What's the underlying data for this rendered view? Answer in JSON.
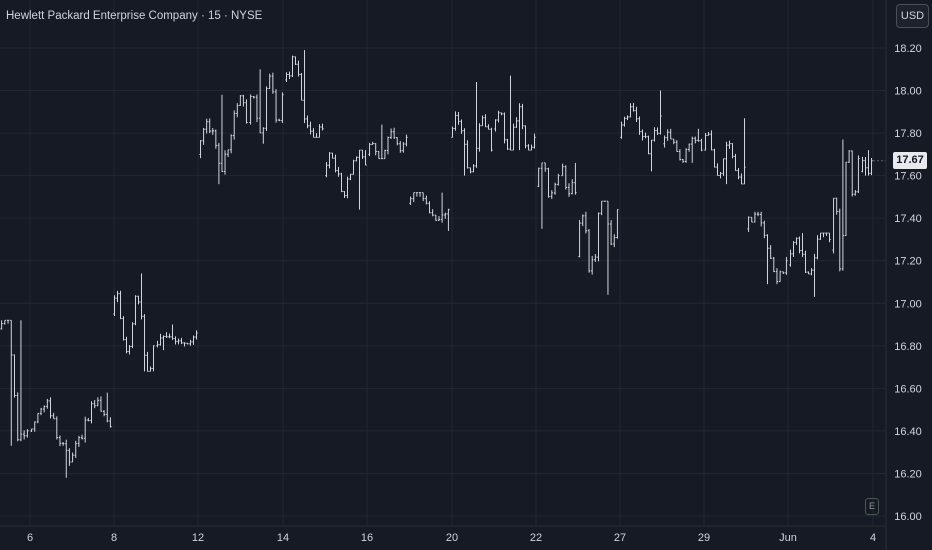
{
  "header": {
    "legend_title": "Hewlett Packard Enterprise Company · 15 · NYSE",
    "currency": "USD"
  },
  "badges": {
    "earnings": "E",
    "last_price": "17.67"
  },
  "colors": {
    "background": "#161a25",
    "bar": "#d1d4dc",
    "grid": "#232733",
    "text": "#d1d4dc",
    "price_label_bg": "#e8e9ee"
  },
  "chart_data": {
    "type": "ohlc",
    "timeframe": "15",
    "exchange": "NYSE",
    "ylim": [
      16.0,
      18.3
    ],
    "y_ticks": [
      "16.00",
      "16.20",
      "16.40",
      "16.60",
      "16.80",
      "17.00",
      "17.20",
      "17.40",
      "17.60",
      "17.80",
      "18.00",
      "18.20"
    ],
    "x_ticks": [
      "6",
      "8",
      "12",
      "14",
      "16",
      "20",
      "22",
      "27",
      "29",
      "Jun",
      "4"
    ],
    "last_price": 17.67,
    "sessions": [
      {
        "label": "6",
        "open": 16.88,
        "close": 16.4,
        "low": 16.33,
        "high": 16.92
      },
      {
        "label": "7",
        "open": 16.4,
        "close": 16.42,
        "low": 16.18,
        "high": 16.58
      },
      {
        "label": "8",
        "open": 16.95,
        "close": 16.8,
        "low": 16.68,
        "high": 17.14
      },
      {
        "label": "9",
        "open": 16.8,
        "close": 16.86,
        "low": 16.78,
        "high": 16.9
      },
      {
        "label": "12",
        "open": 17.7,
        "close": 17.85,
        "low": 17.56,
        "high": 17.98
      },
      {
        "label": "13",
        "open": 17.85,
        "close": 17.98,
        "low": 17.75,
        "high": 18.1
      },
      {
        "label": "14",
        "open": 18.05,
        "close": 17.82,
        "low": 17.78,
        "high": 18.19
      },
      {
        "label": "15",
        "open": 17.6,
        "close": 17.65,
        "low": 17.44,
        "high": 17.72
      },
      {
        "label": "16",
        "open": 17.7,
        "close": 17.78,
        "low": 17.68,
        "high": 17.84
      },
      {
        "label": "17",
        "open": 17.47,
        "close": 17.44,
        "low": 17.34,
        "high": 17.52
      },
      {
        "label": "20",
        "open": 17.78,
        "close": 17.72,
        "low": 17.6,
        "high": 18.04
      },
      {
        "label": "21",
        "open": 17.82,
        "close": 17.78,
        "low": 17.72,
        "high": 18.07
      },
      {
        "label": "22",
        "open": 17.55,
        "close": 17.6,
        "low": 17.35,
        "high": 17.66
      },
      {
        "label": "23",
        "open": 17.6,
        "close": 17.52,
        "low": 17.5,
        "high": 17.66
      },
      {
        "label": "24",
        "open": 17.22,
        "close": 17.44,
        "low": 17.04,
        "high": 17.48
      },
      {
        "label": "27",
        "open": 17.78,
        "close": 17.88,
        "low": 17.62,
        "high": 18.0
      },
      {
        "label": "28",
        "open": 17.75,
        "close": 17.72,
        "low": 17.66,
        "high": 17.82
      },
      {
        "label": "29",
        "open": 17.72,
        "close": 17.64,
        "low": 17.56,
        "high": 17.87
      },
      {
        "label": "31",
        "open": 17.35,
        "close": 17.2,
        "low": 17.09,
        "high": 17.43
      },
      {
        "label": "Jun",
        "open": 17.18,
        "close": 17.3,
        "low": 17.03,
        "high": 17.33
      },
      {
        "label": "3",
        "open": 17.25,
        "close": 17.68,
        "low": 17.15,
        "high": 17.77
      },
      {
        "label": "4",
        "open": 17.62,
        "close": 17.67,
        "low": 17.6,
        "high": 17.72
      }
    ]
  }
}
